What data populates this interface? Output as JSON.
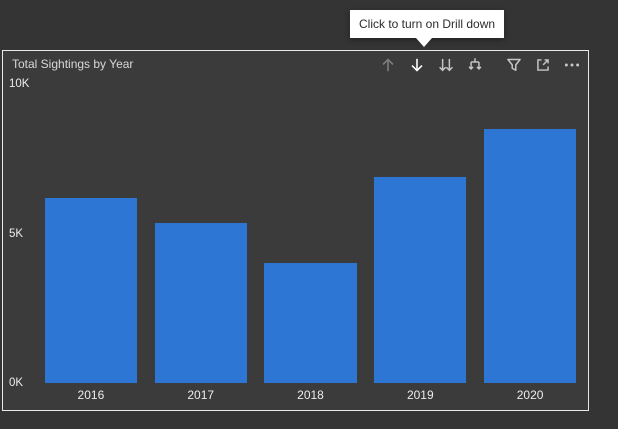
{
  "page": {
    "background": "#343434"
  },
  "tooltip": {
    "text": "Click to turn on Drill down",
    "background": "#FFFFFF",
    "color": "#2B2B2B"
  },
  "visual": {
    "title": "Total Sightings by Year",
    "background": "#3B3B3B",
    "border_color": "#E8E8E8",
    "selected": true,
    "toolbar": {
      "icons": [
        {
          "name": "drill-up-icon",
          "state": "disabled"
        },
        {
          "name": "drill-down-icon",
          "state": "highlighted"
        },
        {
          "name": "go-to-next-level-icon",
          "state": "normal"
        },
        {
          "name": "expand-all-icon",
          "state": "normal"
        },
        {
          "name": "filter-icon",
          "state": "normal"
        },
        {
          "name": "focus-mode-icon",
          "state": "normal"
        },
        {
          "name": "more-options-icon",
          "state": "normal"
        }
      ]
    }
  },
  "chart_data": {
    "type": "bar",
    "title": "Total Sightings by Year",
    "categories": [
      "2016",
      "2017",
      "2018",
      "2019",
      "2020"
    ],
    "values": [
      6200,
      5350,
      4000,
      6900,
      8500
    ],
    "ylim": [
      0,
      10000
    ],
    "yticks": [
      {
        "label": "0K",
        "value": 0
      },
      {
        "label": "5K",
        "value": 5000
      },
      {
        "label": "10K",
        "value": 10000
      }
    ],
    "bar_color": "#2E76D3",
    "grid": false,
    "legend": false,
    "xlabel": "",
    "ylabel": ""
  },
  "colors": {
    "icon_normal": "#C7C7C7",
    "icon_disabled": "#7E7E7E",
    "icon_highlight": "#FFFFFF",
    "axis_label": "#ECECEC"
  }
}
